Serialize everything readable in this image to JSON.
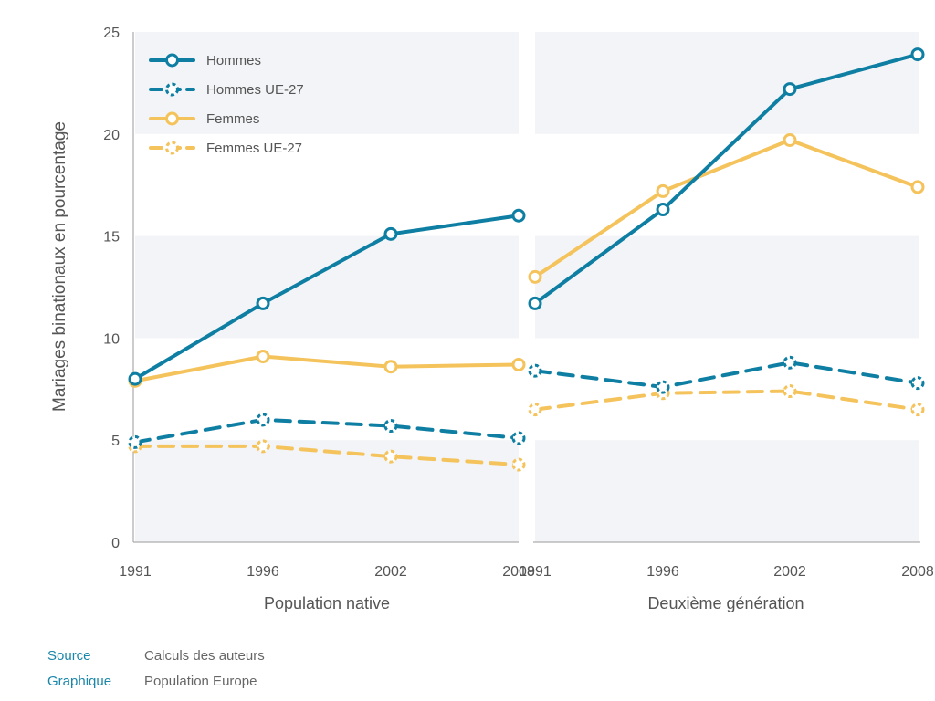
{
  "chart_data": {
    "type": "line",
    "ylabel": "Mariages binationaux en pourcentage",
    "ylim": [
      0,
      25
    ],
    "yticks": [
      0,
      5,
      10,
      15,
      20,
      25
    ],
    "x": [
      "1991",
      "1996",
      "2002",
      "2008"
    ],
    "panels": [
      {
        "label": "Population native",
        "series": [
          {
            "name": "Hommes",
            "values": [
              8.0,
              11.7,
              15.1,
              16.0
            ]
          },
          {
            "name": "Hommes UE-27",
            "values": [
              4.9,
              6.0,
              5.7,
              5.1
            ]
          },
          {
            "name": "Femmes",
            "values": [
              7.9,
              9.1,
              8.6,
              8.7
            ]
          },
          {
            "name": "Femmes UE-27",
            "values": [
              4.7,
              4.7,
              4.2,
              3.8
            ]
          }
        ]
      },
      {
        "label": "Deuxième génération",
        "series": [
          {
            "name": "Hommes",
            "values": [
              11.7,
              16.3,
              22.2,
              23.9
            ]
          },
          {
            "name": "Hommes UE-27",
            "values": [
              8.4,
              7.6,
              8.8,
              7.8
            ]
          },
          {
            "name": "Femmes",
            "values": [
              13.0,
              17.2,
              19.7,
              17.4
            ]
          },
          {
            "name": "Femmes UE-27",
            "values": [
              6.5,
              7.3,
              7.4,
              6.5
            ]
          }
        ]
      }
    ],
    "legend": {
      "position": "top-left",
      "entries": [
        "Hommes",
        "Hommes UE-27",
        "Femmes",
        "Femmes UE-27"
      ]
    },
    "series_styles": {
      "Hommes": {
        "color": "#0e7fa3",
        "dash": "solid"
      },
      "Hommes UE-27": {
        "color": "#0e7fa3",
        "dash": "dashed"
      },
      "Femmes": {
        "color": "#f5c35c",
        "dash": "solid"
      },
      "Femmes UE-27": {
        "color": "#f5c35c",
        "dash": "dashed"
      }
    },
    "background_bands": "alternating light grey horizontal bands",
    "grid": false
  },
  "footer": {
    "source_key": "Source",
    "source_value": "Calculs des auteurs",
    "graphic_key": "Graphique",
    "graphic_value": "Population Europe"
  }
}
